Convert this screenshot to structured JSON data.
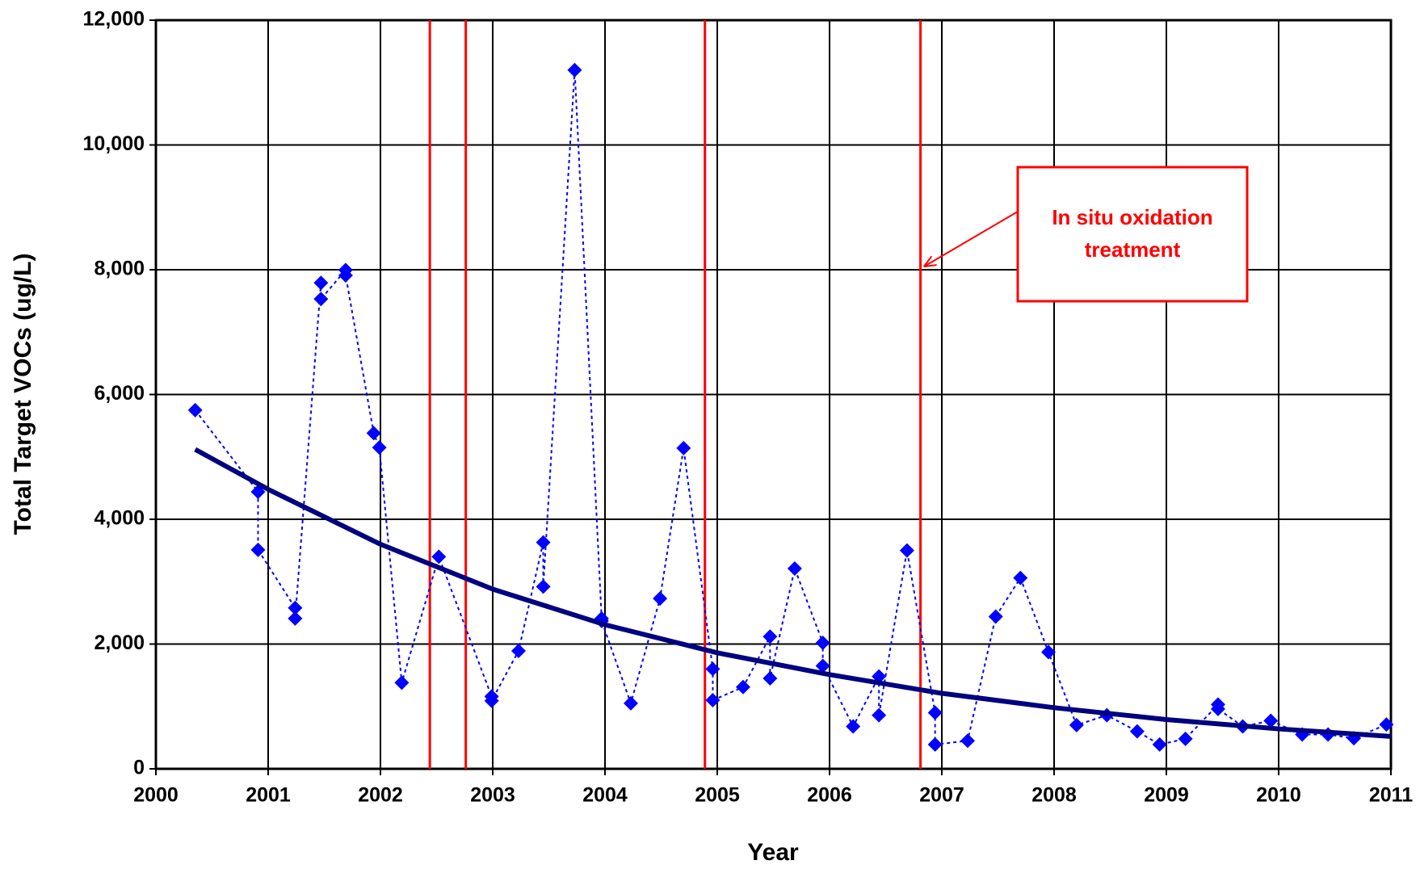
{
  "chart_data": {
    "type": "line",
    "x_label": "Year",
    "y_label": "Total Target VOCs (ug/L)",
    "xlim": [
      2000,
      2011
    ],
    "ylim": [
      0,
      12000
    ],
    "xticks": [
      2000,
      2001,
      2002,
      2003,
      2004,
      2005,
      2006,
      2007,
      2008,
      2009,
      2010,
      2011
    ],
    "yticks": [
      0,
      {
        "value": 2000,
        "label": "2,000"
      },
      {
        "value": 4000,
        "label": "4,000"
      },
      {
        "value": 6000,
        "label": "6,000"
      },
      {
        "value": 8000,
        "label": "8,000"
      },
      {
        "value": 10000,
        "label": "10,000"
      },
      {
        "value": 12000,
        "label": "12,000"
      }
    ],
    "grid": true,
    "series": [
      {
        "color": "#0000ff",
        "style": "dotted",
        "marker": "diamond",
        "x": [
          2000.35,
          2000.91,
          2000.91,
          2001.24,
          2001.24,
          2001.47,
          2001.47,
          2001.69,
          2001.69,
          2001.94,
          2001.99,
          2002.19,
          2002.52,
          2002.99,
          2002.99,
          2003.23,
          2003.45,
          2003.45,
          2003.73,
          2003.97,
          2003.97,
          2004.23,
          2004.49,
          2004.7,
          2004.96,
          2004.96,
          2005.23,
          2005.47,
          2005.47,
          2005.69,
          2005.94,
          2005.94,
          2006.21,
          2006.44,
          2006.44,
          2006.69,
          2006.94,
          2006.94,
          2007.23,
          2007.48,
          2007.7,
          2007.95,
          2008.2,
          2008.47,
          2008.74,
          2008.94,
          2009.17,
          2009.46,
          2009.46,
          2009.68,
          2009.93,
          2010.21,
          2010.44,
          2010.67,
          2010.96
        ],
        "values": [
          5750,
          4440,
          3510,
          2580,
          2410,
          7790,
          7530,
          7995,
          7910,
          5380,
          5150,
          1380,
          3400,
          1160,
          1090,
          1890,
          3630,
          2920,
          11200,
          2410,
          2370,
          1050,
          2730,
          5140,
          1600,
          1100,
          1310,
          2120,
          1450,
          3210,
          2020,
          1650,
          680,
          1480,
          860,
          3500,
          900,
          390,
          450,
          2440,
          3060,
          1870,
          700,
          860,
          600,
          390,
          480,
          1030,
          960,
          680,
          770,
          550,
          550,
          490,
          710
        ]
      },
      {
        "color": "#000080",
        "style": "solid",
        "marker": "none",
        "x": [
          2000.35,
          2001,
          2002,
          2003,
          2004,
          2005,
          2006,
          2007,
          2008,
          2009,
          2010,
          2011
        ],
        "values": [
          5120,
          4480,
          3600,
          2880,
          2310,
          1860,
          1510,
          1210,
          980,
          790,
          640,
          520
        ]
      }
    ],
    "vlines": {
      "color": "#ff0000",
      "x": [
        2002.44,
        2002.76,
        2004.89,
        2006.81
      ]
    },
    "annotation": {
      "lines": [
        "In situ oxidation",
        "treatment"
      ],
      "color": "#ff0000",
      "x": 2006.84,
      "y": 8050
    }
  }
}
